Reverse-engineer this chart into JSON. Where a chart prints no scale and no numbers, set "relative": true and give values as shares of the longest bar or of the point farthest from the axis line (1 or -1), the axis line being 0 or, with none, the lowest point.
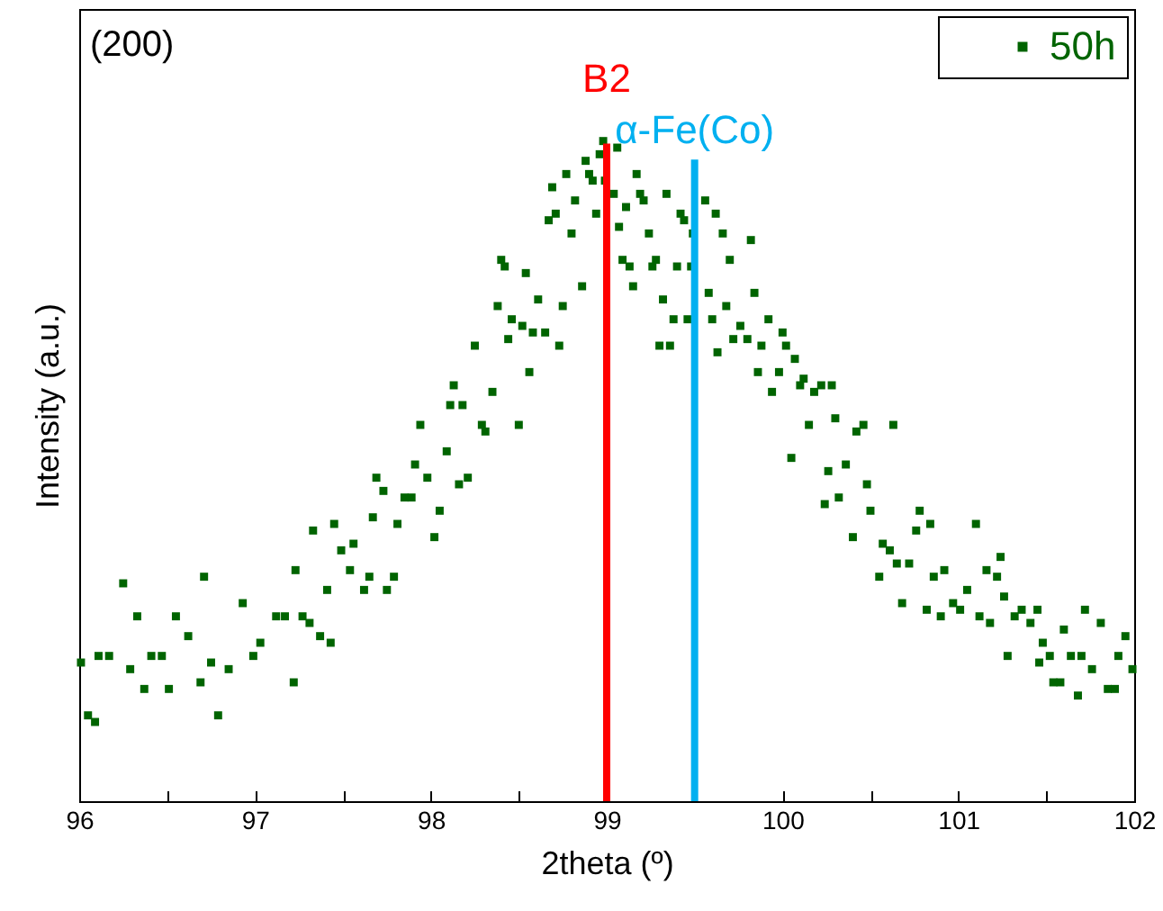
{
  "chart_data": {
    "type": "scatter",
    "xlabel": "2theta (º)",
    "ylabel": "Intensity (a.u.)",
    "relative": true,
    "marker": "square",
    "legend": "top right",
    "xlim": [
      96,
      102
    ],
    "xticks": [
      96,
      {
        "value": 96.5,
        "label": null
      },
      97,
      {
        "value": 97.5,
        "label": null
      },
      98,
      {
        "value": 98.5,
        "label": null
      },
      99,
      {
        "value": 99.5,
        "label": null
      },
      100,
      {
        "value": 100.5,
        "label": null
      },
      101,
      {
        "value": 101.5,
        "label": null
      },
      102
    ],
    "annotations": [
      "(200)"
    ],
    "ref_lines": [
      {
        "axis": "x",
        "value": 99.0,
        "label": "B2",
        "color": "#ff0000"
      },
      {
        "axis": "x",
        "value": 99.5,
        "label": "α-Fe(Co)",
        "color": "#00b0f0"
      }
    ],
    "series": [
      {
        "name": "50h",
        "color": "#006400",
        "x": [
          96.01,
          96.05,
          96.09,
          96.11,
          96.17,
          96.25,
          96.29,
          96.33,
          96.37,
          96.41,
          96.47,
          96.51,
          96.55,
          96.62,
          96.69,
          96.71,
          96.75,
          96.79,
          96.85,
          96.93,
          96.99,
          97.03,
          97.12,
          97.17,
          97.22,
          97.23,
          97.27,
          97.31,
          97.33,
          97.37,
          97.41,
          97.43,
          97.45,
          97.49,
          97.54,
          97.56,
          97.62,
          97.65,
          97.67,
          97.69,
          97.73,
          97.75,
          97.79,
          97.81,
          97.85,
          97.89,
          97.91,
          97.94,
          97.98,
          98.02,
          98.05,
          98.09,
          98.11,
          98.13,
          98.16,
          98.18,
          98.21,
          98.25,
          98.29,
          98.31,
          98.35,
          98.38,
          98.4,
          98.42,
          98.44,
          98.46,
          98.5,
          98.52,
          98.54,
          98.56,
          98.58,
          98.61,
          98.65,
          98.67,
          98.69,
          98.71,
          98.73,
          98.75,
          98.77,
          98.8,
          98.82,
          98.86,
          98.88,
          98.9,
          98.92,
          98.94,
          98.96,
          98.98,
          98.99,
          99.04,
          99.06,
          99.07,
          99.09,
          99.11,
          99.13,
          99.15,
          99.17,
          99.19,
          99.21,
          99.24,
          99.26,
          99.28,
          99.3,
          99.32,
          99.34,
          99.36,
          99.38,
          99.4,
          99.42,
          99.44,
          99.46,
          99.48,
          99.49,
          99.56,
          99.58,
          99.6,
          99.62,
          99.63,
          99.66,
          99.68,
          99.7,
          99.72,
          99.76,
          99.8,
          99.82,
          99.84,
          99.86,
          99.88,
          99.92,
          99.94,
          99.98,
          100.0,
          100.02,
          100.05,
          100.07,
          100.1,
          100.12,
          100.15,
          100.18,
          100.22,
          100.24,
          100.26,
          100.28,
          100.3,
          100.32,
          100.36,
          100.4,
          100.42,
          100.46,
          100.48,
          100.5,
          100.55,
          100.57,
          100.61,
          100.63,
          100.65,
          100.68,
          100.72,
          100.76,
          100.78,
          100.82,
          100.84,
          100.86,
          100.9,
          100.92,
          100.97,
          101.01,
          101.05,
          101.1,
          101.12,
          101.16,
          101.18,
          101.22,
          101.24,
          101.26,
          101.28,
          101.32,
          101.36,
          101.41,
          101.45,
          101.46,
          101.48,
          101.52,
          101.54,
          101.58,
          101.6,
          101.64,
          101.68,
          101.7,
          101.72,
          101.76,
          101.81,
          101.85,
          101.89,
          101.91,
          101.95,
          101.99
        ],
        "values": [
          0.21,
          0.13,
          0.12,
          0.22,
          0.22,
          0.33,
          0.2,
          0.28,
          0.17,
          0.22,
          0.22,
          0.17,
          0.28,
          0.25,
          0.18,
          0.34,
          0.21,
          0.13,
          0.2,
          0.3,
          0.22,
          0.24,
          0.28,
          0.28,
          0.18,
          0.35,
          0.28,
          0.27,
          0.41,
          0.25,
          0.32,
          0.24,
          0.42,
          0.38,
          0.35,
          0.39,
          0.32,
          0.34,
          0.43,
          0.49,
          0.47,
          0.32,
          0.34,
          0.42,
          0.46,
          0.46,
          0.51,
          0.57,
          0.49,
          0.4,
          0.44,
          0.53,
          0.6,
          0.63,
          0.48,
          0.6,
          0.49,
          0.69,
          0.57,
          0.56,
          0.62,
          0.75,
          0.82,
          0.81,
          0.7,
          0.73,
          0.57,
          0.72,
          0.8,
          0.65,
          0.71,
          0.76,
          0.71,
          0.88,
          0.93,
          0.89,
          0.69,
          0.75,
          0.95,
          0.86,
          0.91,
          0.78,
          0.97,
          0.95,
          0.94,
          0.89,
          0.98,
          1.0,
          0.94,
          0.92,
          0.99,
          0.87,
          0.82,
          0.9,
          0.81,
          0.78,
          0.95,
          0.92,
          0.91,
          0.86,
          0.81,
          0.82,
          0.69,
          0.76,
          0.92,
          0.69,
          0.73,
          0.81,
          0.89,
          0.88,
          0.73,
          0.81,
          0.86,
          0.91,
          0.77,
          0.73,
          0.89,
          0.68,
          0.86,
          0.75,
          0.82,
          0.7,
          0.72,
          0.7,
          0.85,
          0.77,
          0.65,
          0.69,
          0.73,
          0.62,
          0.65,
          0.71,
          0.69,
          0.52,
          0.67,
          0.63,
          0.64,
          0.57,
          0.62,
          0.63,
          0.45,
          0.5,
          0.63,
          0.58,
          0.46,
          0.51,
          0.4,
          0.56,
          0.57,
          0.48,
          0.44,
          0.34,
          0.39,
          0.38,
          0.57,
          0.36,
          0.3,
          0.36,
          0.41,
          0.44,
          0.29,
          0.42,
          0.34,
          0.28,
          0.35,
          0.3,
          0.29,
          0.32,
          0.42,
          0.28,
          0.35,
          0.27,
          0.34,
          0.37,
          0.31,
          0.22,
          0.28,
          0.29,
          0.27,
          0.29,
          0.21,
          0.24,
          0.22,
          0.18,
          0.18,
          0.26,
          0.22,
          0.16,
          0.22,
          0.29,
          0.2,
          0.27,
          0.17,
          0.17,
          0.22,
          0.25,
          0.2
        ]
      }
    ]
  }
}
